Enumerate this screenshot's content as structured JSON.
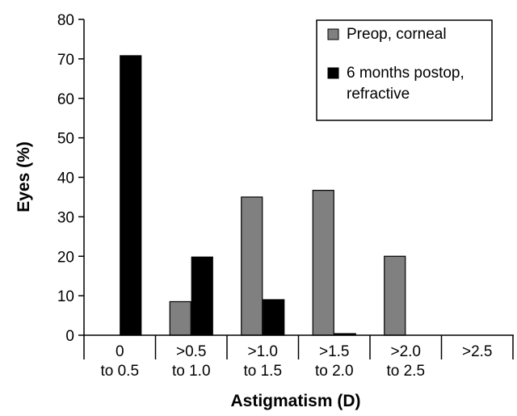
{
  "chart_data": {
    "type": "bar",
    "categories": [
      [
        "0",
        "to 0.5"
      ],
      [
        ">0.5",
        "to 1.0"
      ],
      [
        ">1.0",
        "to 1.5"
      ],
      [
        ">1.5",
        "to 2.0"
      ],
      [
        ">2.0",
        "to 2.5"
      ],
      [
        ">2.5"
      ]
    ],
    "series": [
      {
        "name": "Preop, corneal",
        "color": "#808080",
        "values": [
          0,
          8.5,
          35,
          36.7,
          20,
          0
        ]
      },
      {
        "name": "6 months postop, refractive",
        "color": "#000000",
        "values": [
          70.8,
          19.8,
          9,
          0.4,
          0,
          0
        ]
      }
    ],
    "legend_lines": [
      [
        "Preop, corneal"
      ],
      [
        "6 months postop,",
        "refractive"
      ]
    ],
    "xlabel": "Astigmatism (D)",
    "ylabel": "Eyes (%)",
    "ylim": [
      0,
      80
    ],
    "yticks": [
      0,
      10,
      20,
      30,
      40,
      50,
      60,
      70,
      80
    ],
    "legend_position": "top-right",
    "grid": false
  }
}
